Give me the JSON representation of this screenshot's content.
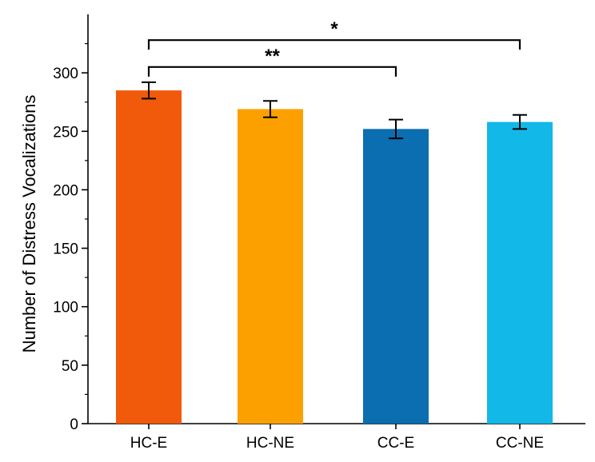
{
  "chart_data": {
    "type": "bar",
    "title": "",
    "xlabel": "",
    "ylabel": "Number of Distress Vocalizations",
    "ylim": [
      0,
      350
    ],
    "yticks": [
      0,
      50,
      100,
      150,
      200,
      250,
      300
    ],
    "grid": false,
    "categories": [
      "HC-E",
      "HC-NE",
      "CC-E",
      "CC-NE"
    ],
    "values": [
      285,
      269,
      252,
      258
    ],
    "errors": [
      7,
      7,
      8,
      6
    ],
    "colors": [
      "#F05A0A",
      "#FCA000",
      "#0A6EB0",
      "#12B8E8"
    ],
    "significance": [
      {
        "from": "HC-E",
        "to": "CC-NE",
        "y": 328,
        "label": "*"
      },
      {
        "from": "HC-E",
        "to": "CC-E",
        "y": 305,
        "label": "**"
      }
    ]
  }
}
